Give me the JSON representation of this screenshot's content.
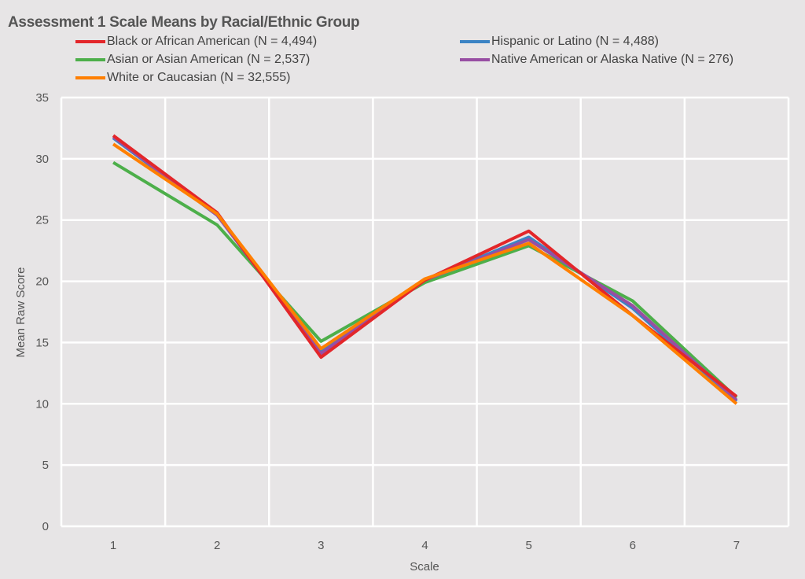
{
  "chart_data": {
    "type": "line",
    "title": "Assessment 1 Scale Means by Racial/Ethnic Group",
    "xlabel": "Scale",
    "ylabel": "Mean Raw Score",
    "categories": [
      "1",
      "2",
      "3",
      "4",
      "5",
      "6",
      "7"
    ],
    "ylim": [
      0,
      35
    ],
    "yticks": [
      "0",
      "5",
      "10",
      "15",
      "20",
      "25",
      "30",
      "35"
    ],
    "grid": true,
    "legend_position": "top",
    "series": [
      {
        "name": "Black or African American (N = 4,494)",
        "color": "#e3262a",
        "values": [
          31.9,
          25.6,
          13.8,
          20.1,
          24.1,
          17.2,
          10.6
        ]
      },
      {
        "name": "Hispanic or Latino (N = 4,488)",
        "color": "#3b83c4",
        "values": [
          31.7,
          25.4,
          14.3,
          20.1,
          23.6,
          17.8,
          10.2
        ]
      },
      {
        "name": "Asian or Asian American (N = 2,537)",
        "color": "#4daf4a",
        "values": [
          29.7,
          24.6,
          15.1,
          19.9,
          22.9,
          18.4,
          10.5
        ]
      },
      {
        "name": "Native American or Alaska Native (N = 276)",
        "color": "#984ea3",
        "values": [
          31.8,
          25.4,
          14.1,
          20.1,
          23.4,
          18.0,
          10.3
        ]
      },
      {
        "name": "White or Caucasian (N = 32,555)",
        "color": "#ff7f00",
        "values": [
          31.2,
          25.5,
          14.5,
          20.2,
          23.1,
          17.2,
          10.0
        ]
      }
    ]
  }
}
